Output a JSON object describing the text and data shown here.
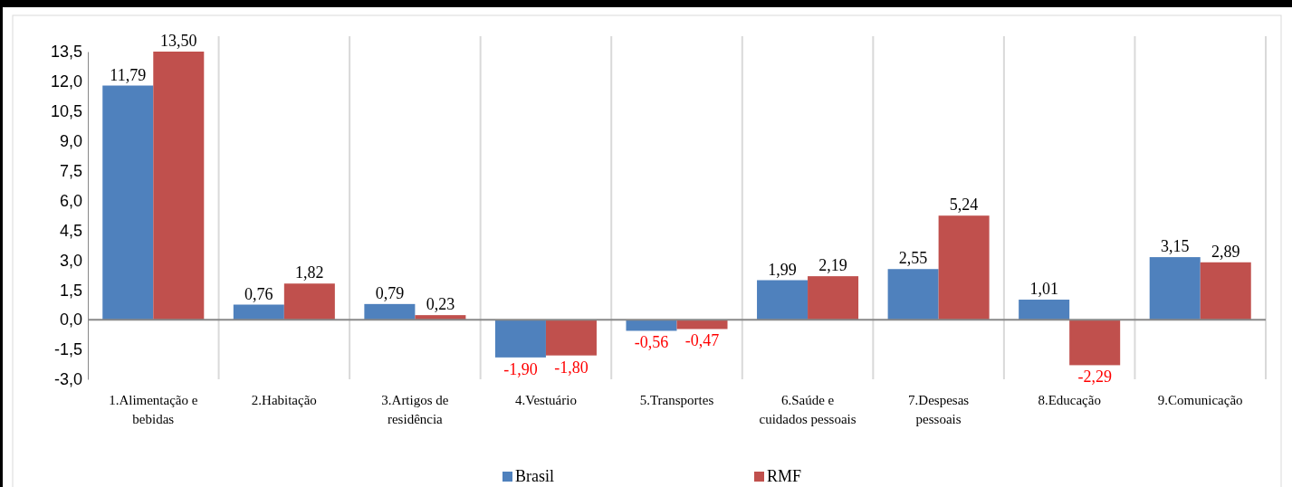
{
  "chart_data": {
    "type": "bar",
    "categories": [
      "1.Alimentação e bebidas",
      "2.Habitação",
      "3.Artigos de residência",
      "4.Vestuário",
      "5.Transportes",
      "6.Saúde e cuidados pessoais",
      "7.Despesas pessoais",
      "8.Educação",
      "9.Comunicação"
    ],
    "series": [
      {
        "name": "Brasil",
        "color": "#4f81bd",
        "values": [
          11.79,
          0.76,
          0.79,
          -1.9,
          -0.56,
          1.99,
          2.55,
          1.01,
          3.15
        ],
        "value_labels": [
          "11,79",
          "0,76",
          "0,79",
          "-1,90",
          "-0,56",
          "1,99",
          "2,55",
          "1,01",
          "3,15"
        ]
      },
      {
        "name": "RMF",
        "color": "#c0504d",
        "values": [
          13.5,
          1.82,
          0.23,
          -1.8,
          -0.47,
          2.19,
          5.24,
          -2.29,
          2.89
        ],
        "value_labels": [
          "13,50",
          "1,82",
          "0,23",
          "-1,80",
          "-0,47",
          "2,19",
          "5,24",
          "-2,29",
          "2,89"
        ]
      }
    ],
    "ylim": [
      -3.0,
      13.5
    ],
    "yticks": [
      {
        "value": -3.0,
        "label": "-3,0"
      },
      {
        "value": -1.5,
        "label": "-1,5"
      },
      {
        "value": 0,
        "label": "0,0"
      },
      {
        "value": 1.5,
        "label": "1,5"
      },
      {
        "value": 3.0,
        "label": "3,0"
      },
      {
        "value": 4.5,
        "label": "4,5"
      },
      {
        "value": 6.0,
        "label": "6,0"
      },
      {
        "value": 7.5,
        "label": "7,5"
      },
      {
        "value": 9.0,
        "label": "9,0"
      },
      {
        "value": 10.5,
        "label": "10,5"
      },
      {
        "value": 12.0,
        "label": "12,0"
      },
      {
        "value": 13.5,
        "label": "13,5"
      }
    ],
    "grid": "x",
    "legend": "bottom"
  }
}
